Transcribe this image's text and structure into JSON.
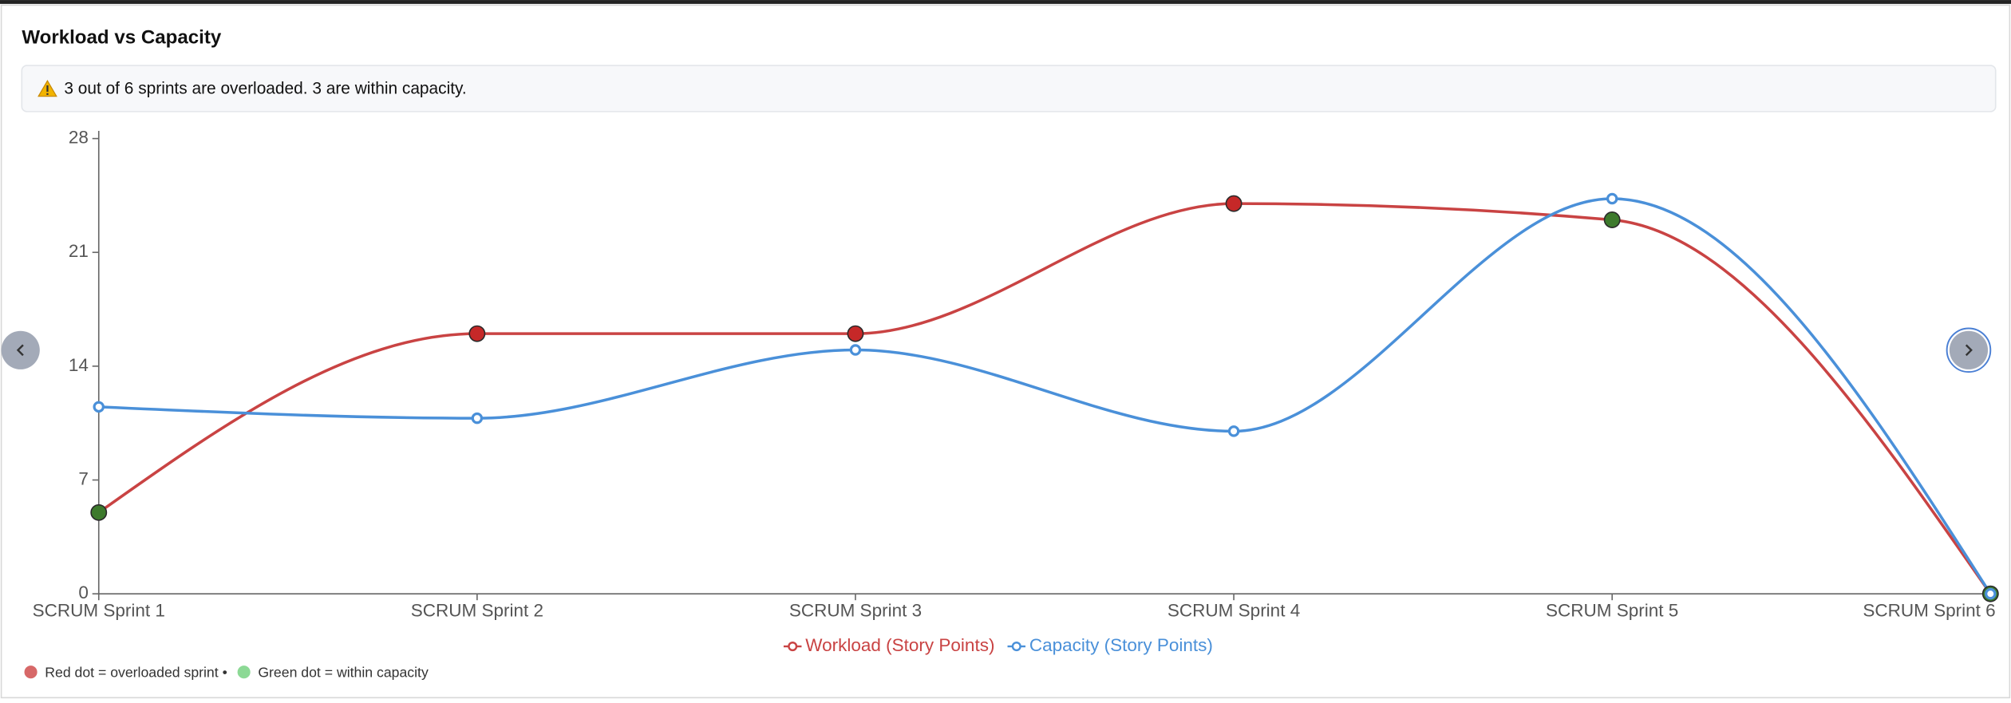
{
  "chart_data": {
    "type": "line",
    "title": "Workload vs Capacity",
    "alert": "3 out of 6 sprints are overloaded. 3 are within capacity.",
    "categories": [
      "SCRUM Sprint 1",
      "SCRUM Sprint 2",
      "SCRUM Sprint 3",
      "SCRUM Sprint 4",
      "SCRUM Sprint 5",
      "SCRUM Sprint 6"
    ],
    "series": [
      {
        "name": "Workload (Story Points)",
        "color": "#c94343",
        "values": [
          5,
          16,
          16,
          24,
          23,
          0
        ]
      },
      {
        "name": "Capacity (Story Points)",
        "color": "#4a90d9",
        "values": [
          11.5,
          10.8,
          15,
          10,
          24.3,
          0
        ]
      }
    ],
    "overloaded_color": "#c62828",
    "within_color": "#3d7a2c",
    "notes": [
      "Red dot = overloaded sprint •",
      "Green dot = within capacity"
    ],
    "ylim": [
      0,
      28
    ],
    "yticks": [
      0,
      7,
      14,
      21,
      28
    ]
  }
}
